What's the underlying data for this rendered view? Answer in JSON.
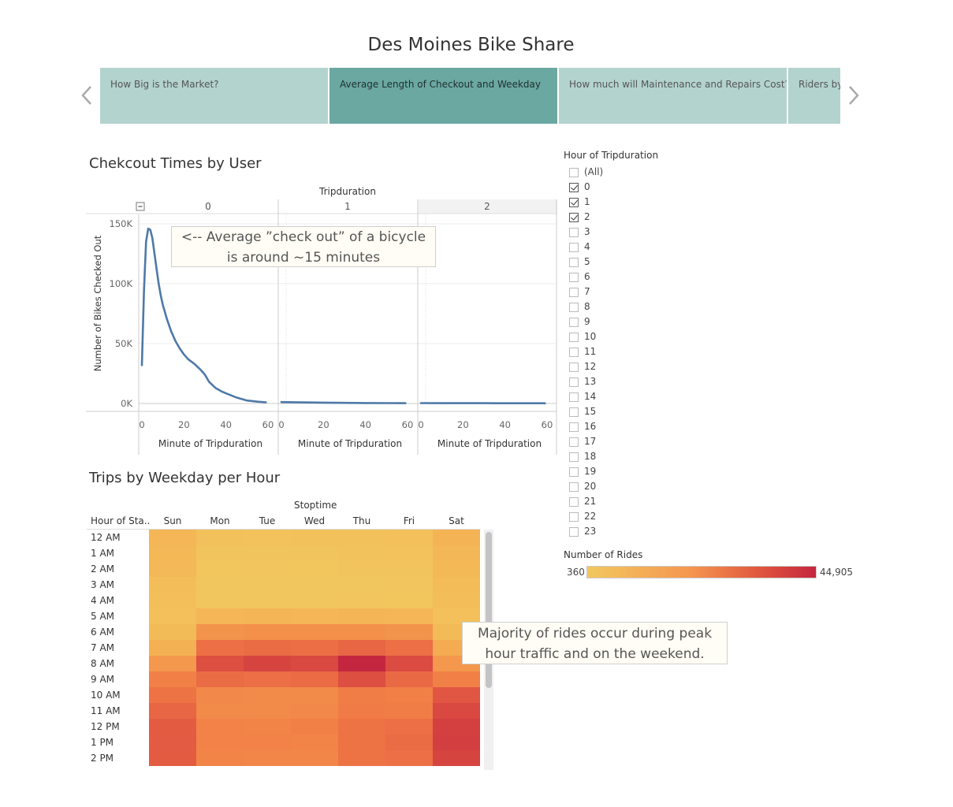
{
  "story": {
    "title": "Des Moines Bike Share",
    "tabs": [
      {
        "label": "How Big is the Market?",
        "active": false
      },
      {
        "label": "Average Length of Checkout and Weekday",
        "active": true
      },
      {
        "label": "How much will Maintenance and Repairs Cost?",
        "active": false
      },
      {
        "label": "Riders by",
        "active": false
      }
    ],
    "prev_icon": "chevron-left-icon",
    "next_icon": "chevron-right-icon"
  },
  "checkout": {
    "title": "Chekcout Times by User",
    "column_header": "Tripduration",
    "collapse_icon": "minus-box-icon",
    "panels": [
      "0",
      "1",
      "2"
    ],
    "ylabel": "Number of Bikes Checked Out",
    "xlabel": "Minute of Tripduration",
    "yticks": [
      "150K",
      "100K",
      "50K",
      "0K"
    ],
    "xticks": [
      "0",
      "20",
      "40",
      "60"
    ],
    "annotation_line1": "<-- Average ”check out” of a bicycle",
    "annotation_line2": "is around ~15 minutes"
  },
  "chart_data": [
    {
      "type": "line",
      "panels": [
        "0",
        "1",
        "2"
      ],
      "ylabel": "Number of Bikes Checked Out",
      "xlabel": "Minute of Tripduration",
      "xlim": [
        0,
        60
      ],
      "ylim": [
        0,
        150000
      ],
      "color": "#4e79a7",
      "series": [
        {
          "panel": "0",
          "x": [
            0,
            1,
            2,
            3,
            4,
            5,
            6,
            7,
            8,
            9,
            10,
            12,
            14,
            16,
            18,
            20,
            22,
            25,
            28,
            30,
            32,
            35,
            38,
            40,
            45,
            50,
            55,
            59
          ],
          "y": [
            32000,
            95000,
            135000,
            146000,
            145000,
            138000,
            125000,
            112000,
            100000,
            90000,
            82000,
            70000,
            60000,
            52000,
            46000,
            41000,
            37000,
            33000,
            28000,
            24000,
            18000,
            13000,
            10000,
            8500,
            5000,
            2500,
            1500,
            1000
          ]
        },
        {
          "panel": "1",
          "x": [
            0,
            10,
            20,
            30,
            40,
            50,
            59
          ],
          "y": [
            1200,
            900,
            700,
            500,
            400,
            300,
            250
          ]
        },
        {
          "panel": "2",
          "x": [
            0,
            10,
            20,
            30,
            40,
            50,
            59
          ],
          "y": [
            300,
            280,
            260,
            240,
            220,
            200,
            200
          ]
        }
      ]
    },
    {
      "type": "heatmap",
      "title": "Trips by Weekday per Hour",
      "column_header": "Stoptime",
      "row_header": "Hour of Sta..",
      "columns": [
        "Sun",
        "Mon",
        "Tue",
        "Wed",
        "Thu",
        "Fri",
        "Sat"
      ],
      "rows": [
        "12 AM",
        "1 AM",
        "2 AM",
        "3 AM",
        "4 AM",
        "5 AM",
        "6 AM",
        "7 AM",
        "8 AM",
        "9 AM",
        "10 AM",
        "11 AM",
        "12 PM",
        "1 PM",
        "2 PM"
      ],
      "values": [
        [
          5200,
          2200,
          2000,
          2100,
          2300,
          2600,
          5600
        ],
        [
          4700,
          1500,
          1400,
          1500,
          1600,
          1900,
          4900
        ],
        [
          4300,
          1200,
          1100,
          1200,
          1300,
          1500,
          4500
        ],
        [
          3400,
          900,
          800,
          900,
          1000,
          1100,
          3600
        ],
        [
          2800,
          1000,
          900,
          1000,
          1100,
          1200,
          3000
        ],
        [
          2400,
          5200,
          5400,
          5300,
          5400,
          5200,
          2600
        ],
        [
          4000,
          14000,
          15000,
          15000,
          15000,
          14000,
          4200
        ],
        [
          6500,
          24000,
          25000,
          24500,
          27000,
          24000,
          8000
        ],
        [
          13000,
          34000,
          37000,
          36000,
          44905,
          35000,
          13000
        ],
        [
          19000,
          25000,
          24000,
          25500,
          34000,
          26000,
          19000
        ],
        [
          23000,
          17000,
          16500,
          16500,
          20000,
          19000,
          32000
        ],
        [
          27000,
          16500,
          16500,
          17000,
          20500,
          20000,
          36000
        ],
        [
          30000,
          18500,
          18000,
          19000,
          23000,
          24000,
          38000
        ],
        [
          30500,
          18500,
          18500,
          18000,
          23000,
          25000,
          38500
        ],
        [
          30000,
          18000,
          17500,
          17500,
          23000,
          24000,
          37000
        ]
      ],
      "legend": {
        "title": "Number of Rides",
        "min_label": "360",
        "max_label": "44,905",
        "min": 360,
        "max": 44905
      }
    }
  ],
  "heatmap": {
    "title": "Trips by Weekday per Hour",
    "column_header": "Stoptime",
    "row_header": "Hour of Sta..",
    "annotation_line1": "Majority of rides occur during peak",
    "annotation_line2": "hour traffic and on the weekend.",
    "colors": {
      "low": "#f2c85f",
      "mid": "#f5964f",
      "high": "#c4263f"
    }
  },
  "filter": {
    "title": "Hour of Tripduration",
    "items": [
      {
        "label": "(All)",
        "checked": false
      },
      {
        "label": "0",
        "checked": true
      },
      {
        "label": "1",
        "checked": true
      },
      {
        "label": "2",
        "checked": true
      },
      {
        "label": "3",
        "checked": false
      },
      {
        "label": "4",
        "checked": false
      },
      {
        "label": "5",
        "checked": false
      },
      {
        "label": "6",
        "checked": false
      },
      {
        "label": "7",
        "checked": false
      },
      {
        "label": "8",
        "checked": false
      },
      {
        "label": "9",
        "checked": false
      },
      {
        "label": "10",
        "checked": false
      },
      {
        "label": "11",
        "checked": false
      },
      {
        "label": "12",
        "checked": false
      },
      {
        "label": "13",
        "checked": false
      },
      {
        "label": "14",
        "checked": false
      },
      {
        "label": "15",
        "checked": false
      },
      {
        "label": "16",
        "checked": false
      },
      {
        "label": "17",
        "checked": false
      },
      {
        "label": "18",
        "checked": false
      },
      {
        "label": "19",
        "checked": false
      },
      {
        "label": "20",
        "checked": false
      },
      {
        "label": "21",
        "checked": false
      },
      {
        "label": "22",
        "checked": false
      },
      {
        "label": "23",
        "checked": false
      }
    ]
  },
  "legend": {
    "title": "Number of Rides",
    "min_label": "360",
    "max_label": "44,905"
  }
}
